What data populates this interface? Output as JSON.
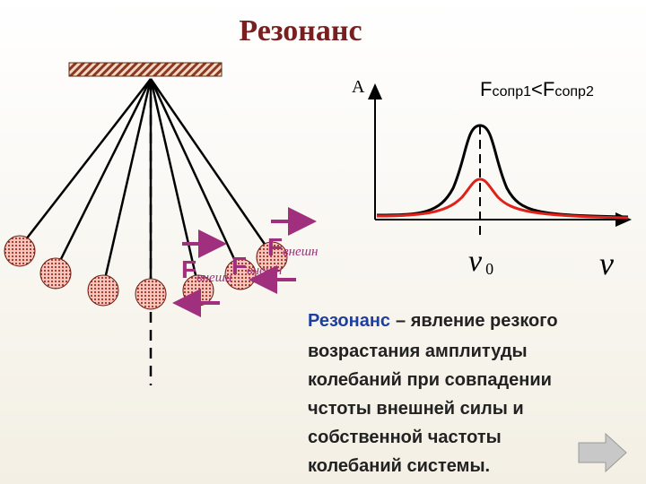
{
  "title": "Резонанс",
  "graph": {
    "y_axis_label": "A",
    "legend": {
      "f1": "F",
      "sub1": "сопр1",
      "relation": "<",
      "f2": "F",
      "sub2": "сопр2"
    },
    "resonance_frequency": {
      "symbol": "ν",
      "subscript": "0"
    },
    "x_axis_label": "ν"
  },
  "forces": [
    {
      "symbol": "F",
      "subscript": "внешн"
    },
    {
      "symbol": "F",
      "subscript": "внешн"
    },
    {
      "symbol": "F",
      "subscript": "внешн"
    }
  ],
  "definition": {
    "term": "Резонанс",
    "lines": [
      "– явление резкого",
      "возрастания амплитуды",
      "колебаний при совпадении",
      "чстоты внешней силы и",
      "собственной частоты",
      "колебаний системы."
    ]
  }
}
